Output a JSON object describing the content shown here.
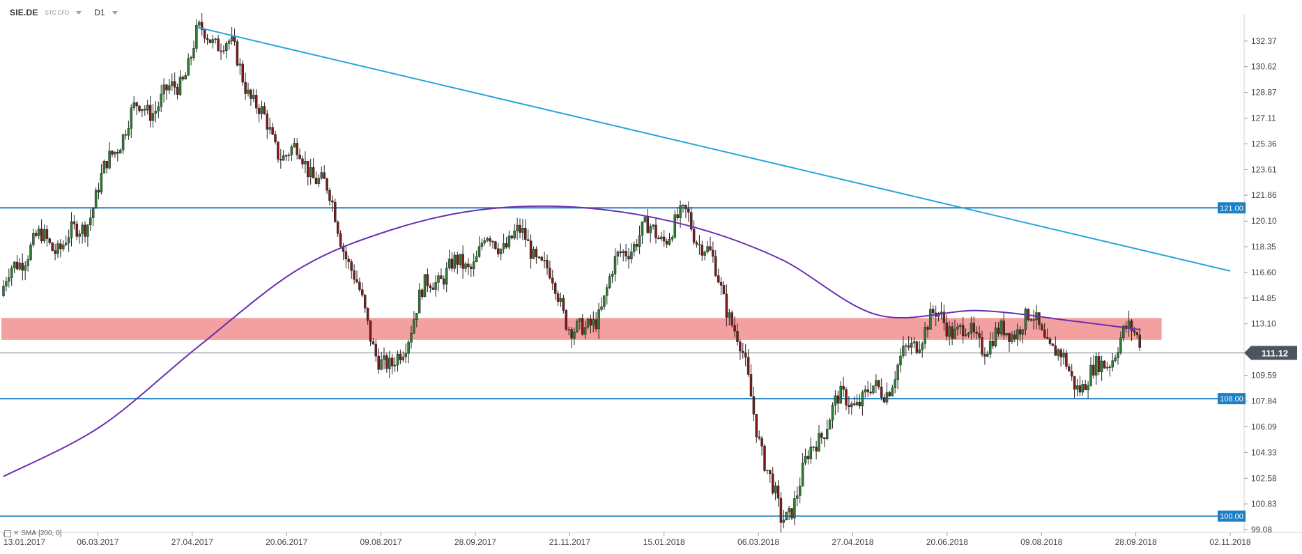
{
  "header": {
    "symbol": "SIE.DE",
    "instrument_type": "STC CFD",
    "timeframe": "D1"
  },
  "indicator_legend": {
    "label": "SMA",
    "params": "[200, 0]"
  },
  "colors": {
    "bull_candle": "#2e7d32",
    "bear_candle": "#7b1a1a",
    "trendline": "#29a3e0",
    "level_line": "#1e7fc4",
    "sma": "#6a2fb0",
    "zone_fill": "#ef8080",
    "price_badge": "#4a5560"
  },
  "chart_data": {
    "type": "candlestick",
    "title": "SIE.DE",
    "timeframe": "D1",
    "y_axis": {
      "ticks": [
        "132.37",
        "130.62",
        "128.87",
        "127.11",
        "125.36",
        "123.61",
        "121.86",
        "120.10",
        "118.35",
        "116.60",
        "114.85",
        "113.10",
        "109.59",
        "107.84",
        "106.09",
        "104.33",
        "102.58",
        "100.83",
        "99.08"
      ],
      "range": [
        99.08,
        133.5
      ]
    },
    "x_axis": {
      "ticks": [
        "13.01.2017",
        "06.03.2017",
        "27.04.2017",
        "20.06.2017",
        "09.08.2017",
        "28.09.2017",
        "21.11.2017",
        "15.01.2018",
        "06.03.2018",
        "27.04.2018",
        "20.06.2018",
        "09.08.2018",
        "28.09.2018",
        "02.11.2018"
      ]
    },
    "current_price": "111.12",
    "horizontal_levels": [
      {
        "label": "121.00",
        "value": 121.0
      },
      {
        "label": "108.00",
        "value": 108.0
      },
      {
        "label": "100.00",
        "value": 100.0
      }
    ],
    "resistance_zone": {
      "from": 112.0,
      "to": 113.5
    },
    "trendline": {
      "from": {
        "date": "27.04.2017",
        "price": 133.3
      },
      "to": {
        "date": "02.11.2018",
        "price": 116.7
      }
    },
    "sma_200": [
      {
        "date": "13.01.2017",
        "value": 102.7
      },
      {
        "date": "06.03.2017",
        "value": 106.1
      },
      {
        "date": "27.04.2017",
        "value": 111.5
      },
      {
        "date": "20.06.2017",
        "value": 116.8
      },
      {
        "date": "09.08.2017",
        "value": 119.5
      },
      {
        "date": "28.09.2017",
        "value": 120.9
      },
      {
        "date": "21.11.2017",
        "value": 121.0
      },
      {
        "date": "15.01.2018",
        "value": 119.8
      },
      {
        "date": "06.03.2018",
        "value": 117.5
      },
      {
        "date": "27.04.2018",
        "value": 113.7
      },
      {
        "date": "20.06.2018",
        "value": 114.0
      },
      {
        "date": "09.08.2018",
        "value": 113.3
      },
      {
        "date": "15.09.2018",
        "value": 112.7
      }
    ],
    "price_path": [
      {
        "date": "13.01.2017",
        "close": 115.0
      },
      {
        "date": "06.03.2017",
        "close": 122.5
      },
      {
        "date": "27.04.2017",
        "close": 133.0
      },
      {
        "date": "20.06.2017",
        "close": 125.0
      },
      {
        "date": "09.08.2017",
        "close": 110.5
      },
      {
        "date": "28.09.2017",
        "close": 120.0
      },
      {
        "date": "21.11.2017",
        "close": 113.5
      },
      {
        "date": "15.01.2018",
        "close": 122.0
      },
      {
        "date": "06.03.2018",
        "close": 101.0
      },
      {
        "date": "27.04.2018",
        "close": 110.0
      },
      {
        "date": "20.06.2018",
        "close": 113.5
      },
      {
        "date": "09.08.2018",
        "close": 110.5
      },
      {
        "date": "15.09.2018",
        "close": 111.12
      }
    ]
  }
}
